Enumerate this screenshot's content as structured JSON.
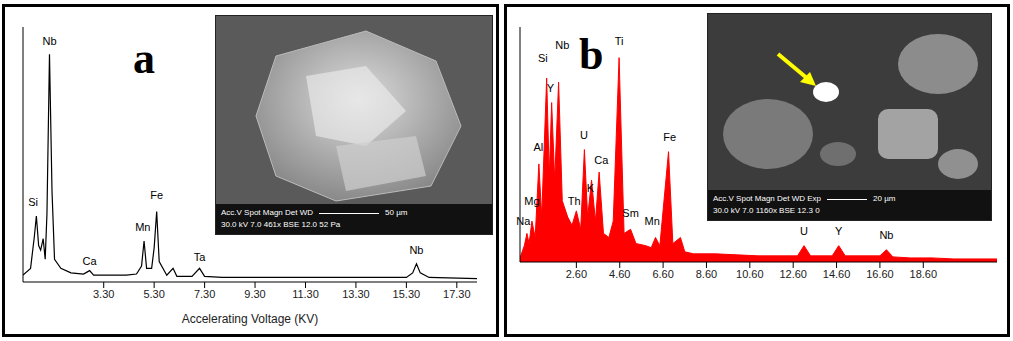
{
  "chart_data": [
    {
      "panel_label": "a",
      "type": "line",
      "color": "#000000",
      "grid": false,
      "tick_labels": "x",
      "xlabel": "Accelerating Voltage (KV)",
      "xlim": [
        0.1,
        18.1
      ],
      "ylim": [
        0,
        112
      ],
      "xticks": [
        {
          "value": 3.3,
          "label": "3.30"
        },
        {
          "value": 5.3,
          "label": "5.30"
        },
        {
          "value": 7.3,
          "label": "7.30"
        },
        {
          "value": 9.3,
          "label": "9.30"
        },
        {
          "value": 11.3,
          "label": "11.30"
        },
        {
          "value": 13.3,
          "label": "13.30"
        },
        {
          "value": 15.3,
          "label": "15.30"
        },
        {
          "value": 17.3,
          "label": "17.30"
        }
      ],
      "x": [
        0.1,
        0.4,
        0.55,
        0.63,
        0.72,
        0.8,
        0.9,
        0.98,
        1.05,
        1.15,
        1.25,
        1.35,
        1.6,
        2.0,
        2.5,
        2.74,
        2.9,
        3.5,
        4.2,
        4.6,
        4.8,
        4.9,
        5.0,
        5.2,
        5.3,
        5.4,
        5.5,
        5.8,
        6.05,
        6.2,
        6.8,
        7.1,
        7.3,
        8.0,
        9.3,
        11.0,
        13.0,
        15.3,
        15.55,
        15.7,
        15.85,
        16.2,
        18.1
      ],
      "values": [
        3,
        6,
        20,
        29,
        16,
        14,
        19,
        10,
        30,
        100,
        40,
        10,
        6,
        4,
        3.5,
        5,
        3,
        3,
        3,
        3.5,
        7,
        18,
        6,
        6,
        15,
        31,
        9,
        3,
        6,
        2.5,
        2.5,
        6,
        2.5,
        2,
        2,
        2,
        2,
        2,
        4,
        8,
        4,
        2,
        1.5
      ],
      "annotations": [
        {
          "text": "Nb",
          "x": 1.15,
          "y": 106
        },
        {
          "text": "Si",
          "x": 0.5,
          "y": 35
        },
        {
          "text": "Ca",
          "x": 2.74,
          "y": 9
        },
        {
          "text": "Mn",
          "x": 4.85,
          "y": 24
        },
        {
          "text": "Fe",
          "x": 5.4,
          "y": 38
        },
        {
          "text": "Ta",
          "x": 7.1,
          "y": 11
        },
        {
          "text": "Nb",
          "x": 15.7,
          "y": 14
        }
      ],
      "inset": {
        "info": [
          "Acc.V Spot Magn   Det WD",
          "30.0 kV 7.0   461x   BSE 12.0 52 Pa"
        ],
        "scale": "50 µm"
      }
    },
    {
      "panel_label": "b",
      "type": "area",
      "color": "#ff0000",
      "grid": false,
      "tick_labels": "x",
      "xlim": [
        0,
        22
      ],
      "ylim": [
        0,
        115
      ],
      "xticks": [
        {
          "value": 2.6,
          "label": "2.60"
        },
        {
          "value": 4.6,
          "label": "4.60"
        },
        {
          "value": 6.6,
          "label": "6.60"
        },
        {
          "value": 8.6,
          "label": "8.60"
        },
        {
          "value": 10.6,
          "label": "10.60"
        },
        {
          "value": 12.6,
          "label": "12.60"
        },
        {
          "value": 14.6,
          "label": "14.60"
        },
        {
          "value": 16.6,
          "label": "16.60"
        },
        {
          "value": 18.6,
          "label": "18.60"
        }
      ],
      "x": [
        0,
        0.2,
        0.32,
        0.42,
        0.55,
        0.7,
        0.87,
        1.0,
        1.23,
        1.35,
        1.46,
        1.6,
        1.78,
        1.95,
        2.2,
        2.4,
        2.6,
        2.8,
        2.97,
        3.12,
        3.3,
        3.48,
        3.65,
        3.85,
        4.1,
        4.3,
        4.57,
        4.8,
        5.1,
        5.35,
        5.8,
        6.05,
        6.25,
        6.45,
        6.85,
        7.05,
        7.4,
        7.6,
        8.0,
        9.0,
        10.0,
        11.0,
        12.0,
        12.8,
        13.1,
        13.4,
        14.4,
        14.7,
        15.0,
        16.6,
        16.9,
        17.2,
        18.0,
        19.0,
        20.0,
        22.0
      ],
      "values": [
        2,
        8,
        14,
        9,
        20,
        12,
        48,
        22,
        90,
        42,
        78,
        40,
        88,
        30,
        22,
        18,
        25,
        16,
        55,
        22,
        40,
        20,
        44,
        14,
        12,
        20,
        100,
        14,
        16,
        9,
        8,
        7,
        12,
        8,
        54,
        9,
        12,
        5,
        4,
        4,
        3.5,
        3,
        3,
        3,
        8,
        3,
        3,
        8,
        3,
        3,
        6,
        2.5,
        2,
        2,
        1.5,
        1.5
      ],
      "annotations": [
        {
          "text": "Na",
          "x": 0.15,
          "y": 20
        },
        {
          "text": "Mg",
          "x": 0.55,
          "y": 30
        },
        {
          "text": "Al",
          "x": 0.85,
          "y": 56
        },
        {
          "text": "Si",
          "x": 1.05,
          "y": 100
        },
        {
          "text": "Y",
          "x": 1.4,
          "y": 85
        },
        {
          "text": "Nb",
          "x": 1.95,
          "y": 106
        },
        {
          "text": "U",
          "x": 2.95,
          "y": 62
        },
        {
          "text": "Th",
          "x": 2.5,
          "y": 30
        },
        {
          "text": "K",
          "x": 3.25,
          "y": 36
        },
        {
          "text": "Ca",
          "x": 3.75,
          "y": 50
        },
        {
          "text": "Ti",
          "x": 4.57,
          "y": 108
        },
        {
          "text": "Sm",
          "x": 5.1,
          "y": 24
        },
        {
          "text": "Mn",
          "x": 6.1,
          "y": 20
        },
        {
          "text": "Fe",
          "x": 6.9,
          "y": 61
        },
        {
          "text": "U",
          "x": 13.1,
          "y": 15
        },
        {
          "text": "Y",
          "x": 14.7,
          "y": 15
        },
        {
          "text": "Nb",
          "x": 16.9,
          "y": 13
        }
      ],
      "inset": {
        "info": [
          "Acc.V Spot Magn   Det WD Exp",
          "30.0 kV 7.0  1160x  BSE 12.3 0"
        ],
        "scale": "20 µm"
      }
    }
  ]
}
